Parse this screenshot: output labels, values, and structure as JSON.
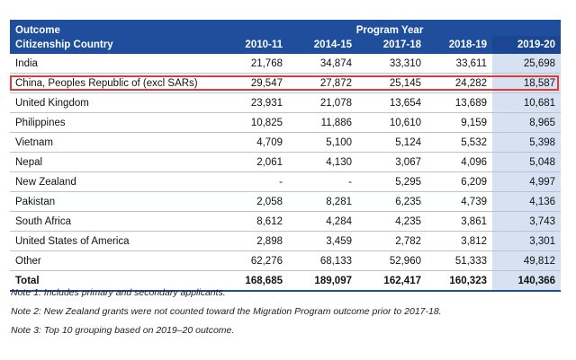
{
  "header": {
    "left_top": "Outcome",
    "left_bottom": "Citizenship Country",
    "group_label": "Program Year",
    "years": [
      "2010-11",
      "2014-15",
      "2017-18",
      "2018-19",
      "2019-20"
    ]
  },
  "rows": [
    {
      "country": "India",
      "values": [
        "21,768",
        "34,874",
        "33,310",
        "33,611",
        "25,698"
      ]
    },
    {
      "country": "China, Peoples Republic of (excl SARs)",
      "values": [
        "29,547",
        "27,872",
        "25,145",
        "24,282",
        "18,587"
      ]
    },
    {
      "country": "United Kingdom",
      "values": [
        "23,931",
        "21,078",
        "13,654",
        "13,689",
        "10,681"
      ]
    },
    {
      "country": "Philippines",
      "values": [
        "10,825",
        "11,886",
        "10,610",
        "9,159",
        "8,965"
      ]
    },
    {
      "country": "Vietnam",
      "values": [
        "4,709",
        "5,100",
        "5,124",
        "5,532",
        "5,398"
      ]
    },
    {
      "country": "Nepal",
      "values": [
        "2,061",
        "4,130",
        "3,067",
        "4,096",
        "5,048"
      ]
    },
    {
      "country": "New Zealand",
      "values": [
        "-",
        "-",
        "5,295",
        "6,209",
        "4,997"
      ]
    },
    {
      "country": "Pakistan",
      "values": [
        "2,058",
        "8,281",
        "6,235",
        "4,739",
        "4,136"
      ]
    },
    {
      "country": "South Africa",
      "values": [
        "8,612",
        "4,284",
        "4,235",
        "3,861",
        "3,743"
      ]
    },
    {
      "country": "United States of America",
      "values": [
        "2,898",
        "3,459",
        "2,782",
        "3,812",
        "3,301"
      ]
    },
    {
      "country": "Other",
      "values": [
        "62,276",
        "68,133",
        "52,960",
        "51,333",
        "49,812"
      ]
    }
  ],
  "total": {
    "label": "Total",
    "values": [
      "168,685",
      "189,097",
      "162,417",
      "160,323",
      "140,366"
    ]
  },
  "notes": [
    "Note 1: Includes primary and secondary applicants.",
    "Note 2: New Zealand grants were not counted toward the Migration Program outcome prior to 2017-18.",
    "Note 3: Top 10 grouping based on 2019–20 outcome."
  ],
  "colors": {
    "header": "#1f4e9d",
    "last_column": "#d6e1f2",
    "highlight": "#e23a3a"
  }
}
